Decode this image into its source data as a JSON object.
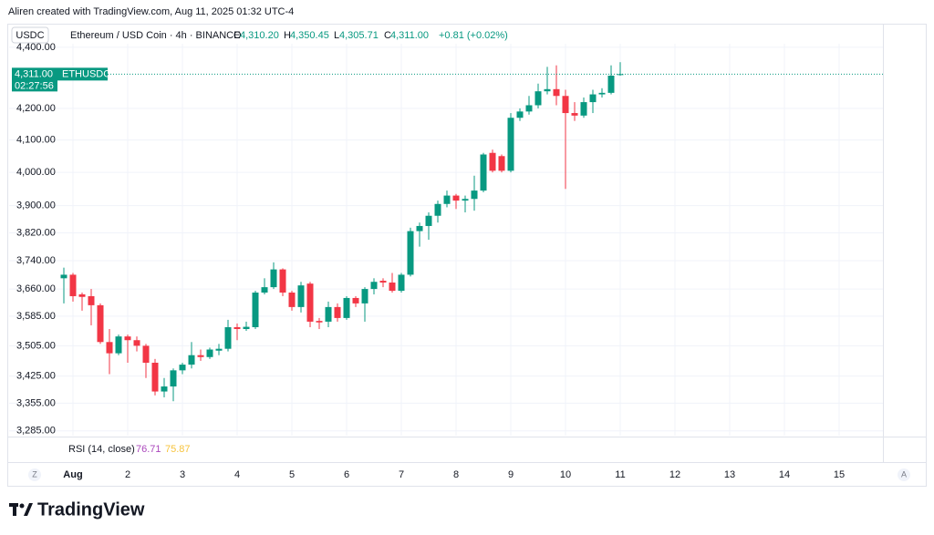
{
  "header": {
    "credit": "Aliren created with TradingView.com, Aug 11, 2025 01:32 UTC-4"
  },
  "legend": {
    "symbol_tag": "USDC",
    "title": "Ethereum / USD Coin · 4h · BINANCE",
    "o_key": "O",
    "o_value": "4,310.20",
    "h_key": "H",
    "h_value": "4,350.45",
    "l_key": "L",
    "l_value": "4,305.71",
    "c_key": "C",
    "c_value": "4,311.00",
    "change": "+0.81 (+0.02%)"
  },
  "rsi": {
    "name": "RSI (14, close)",
    "value1": "76.71",
    "value2": "75.87"
  },
  "axis_buttons": {
    "left": "Z",
    "right": "A"
  },
  "footer": {
    "brand": "TradingView"
  },
  "chart_data": {
    "type": "candlestick",
    "log_scale": true,
    "grid": true,
    "up_color": "#089981",
    "down_color": "#f23645",
    "x": [
      0.8333,
      1,
      1.1667,
      1.3333,
      1.5,
      1.6667,
      1.8333,
      2,
      2.1667,
      2.3333,
      2.5,
      2.6667,
      2.8333,
      3,
      3.1667,
      3.3333,
      3.5,
      3.6667,
      3.8333,
      4,
      4.1667,
      4.3333,
      4.5,
      4.6667,
      4.8333,
      5,
      5.1667,
      5.3333,
      5.5,
      5.6667,
      5.8333,
      6,
      6.1667,
      6.3333,
      6.5,
      6.6667,
      6.8333,
      7,
      7.1667,
      7.3333,
      7.5,
      7.6667,
      7.8333,
      8,
      8.1667,
      8.3333,
      8.5,
      8.6667,
      8.8333,
      9,
      9.1667,
      9.3333,
      9.5,
      9.6667,
      9.8333,
      10,
      10.1667,
      10.3333,
      10.5,
      10.6667,
      10.8333,
      11
    ],
    "open": [
      3690,
      3700,
      3645,
      3640,
      3615,
      3515,
      3485,
      3530,
      3520,
      3505,
      3460,
      3385,
      3398,
      3440,
      3455,
      3480,
      3475,
      3492,
      3497,
      3555,
      3550,
      3555,
      3650,
      3665,
      3715,
      3650,
      3610,
      3675,
      3572,
      3570,
      3610,
      3580,
      3635,
      3620,
      3660,
      3683,
      3678,
      3655,
      3700,
      3825,
      3840,
      3870,
      3905,
      3930,
      3915,
      3920,
      3945,
      4060,
      4050,
      4005,
      4170,
      4190,
      4210,
      4255,
      4262,
      4240,
      4185,
      4177,
      4220,
      4245,
      4250,
      4310.2
    ],
    "high": [
      3720,
      3705,
      3650,
      3660,
      3620,
      3550,
      3535,
      3535,
      3530,
      3510,
      3470,
      3420,
      3445,
      3460,
      3515,
      3495,
      3500,
      3510,
      3575,
      3565,
      3570,
      3655,
      3690,
      3735,
      3718,
      3655,
      3680,
      3680,
      3580,
      3625,
      3620,
      3640,
      3640,
      3665,
      3690,
      3690,
      3705,
      3705,
      3835,
      3850,
      3880,
      3915,
      3945,
      3935,
      3930,
      3990,
      4060,
      4070,
      4055,
      4185,
      4200,
      4240,
      4280,
      4335,
      4340,
      4260,
      4220,
      4235,
      4260,
      4265,
      4340,
      4350.45
    ],
    "low": [
      3620,
      3625,
      3600,
      3560,
      3510,
      3430,
      3480,
      3460,
      3490,
      3420,
      3375,
      3370,
      3360,
      3430,
      3445,
      3465,
      3470,
      3480,
      3490,
      3520,
      3545,
      3550,
      3645,
      3660,
      3640,
      3600,
      3595,
      3555,
      3550,
      3555,
      3570,
      3575,
      3610,
      3570,
      3645,
      3665,
      3650,
      3650,
      3695,
      3780,
      3800,
      3850,
      3895,
      3890,
      3880,
      3885,
      3940,
      4000,
      4000,
      4000,
      4160,
      4180,
      4200,
      4245,
      4210,
      3950,
      4160,
      4170,
      4185,
      4235,
      4245,
      4305.71
    ],
    "close": [
      3700,
      3640,
      3638,
      3615,
      3515,
      3485,
      3530,
      3520,
      3505,
      3460,
      3385,
      3398,
      3440,
      3455,
      3480,
      3475,
      3495,
      3497,
      3555,
      3550,
      3556,
      3650,
      3665,
      3715,
      3650,
      3610,
      3670,
      3570,
      3568,
      3610,
      3580,
      3635,
      3620,
      3660,
      3680,
      3678,
      3655,
      3700,
      3825,
      3840,
      3870,
      3905,
      3930,
      3915,
      3920,
      3945,
      4055,
      4005,
      4005,
      4170,
      4190,
      4210,
      4255,
      4262,
      4240,
      4185,
      4177,
      4220,
      4245,
      4250,
      4306,
      4311
    ],
    "xlim": [
      -0.1667,
      15.8
    ],
    "xticks": [
      {
        "value": 1,
        "label": "Aug"
      },
      2,
      3,
      4,
      5,
      6,
      7,
      8,
      9,
      10,
      11,
      12,
      13,
      14,
      15
    ],
    "ylim": [
      3273,
      4412
    ],
    "yticks": [
      {
        "value": 4400,
        "label": "4,400.00"
      },
      {
        "value": 4200,
        "label": "4,200.00"
      },
      {
        "value": 4100,
        "label": "4,100.00"
      },
      {
        "value": 4000,
        "label": "4,000.00"
      },
      {
        "value": 3900,
        "label": "3,900.00"
      },
      {
        "value": 3820,
        "label": "3,820.00"
      },
      {
        "value": 3740,
        "label": "3,740.00"
      },
      {
        "value": 3660,
        "label": "3,660.00"
      },
      {
        "value": 3585,
        "label": "3,585.00"
      },
      {
        "value": 3505,
        "label": "3,505.00"
      },
      {
        "value": 3425,
        "label": "3,425.00"
      },
      {
        "value": 3355,
        "label": "3,355.00"
      },
      {
        "value": 3285,
        "label": "3,285.00"
      }
    ],
    "price_line": {
      "value": 4311,
      "label": "4,311.00",
      "countdown": "02:27:56",
      "symbol": "ETHUSDC"
    }
  }
}
